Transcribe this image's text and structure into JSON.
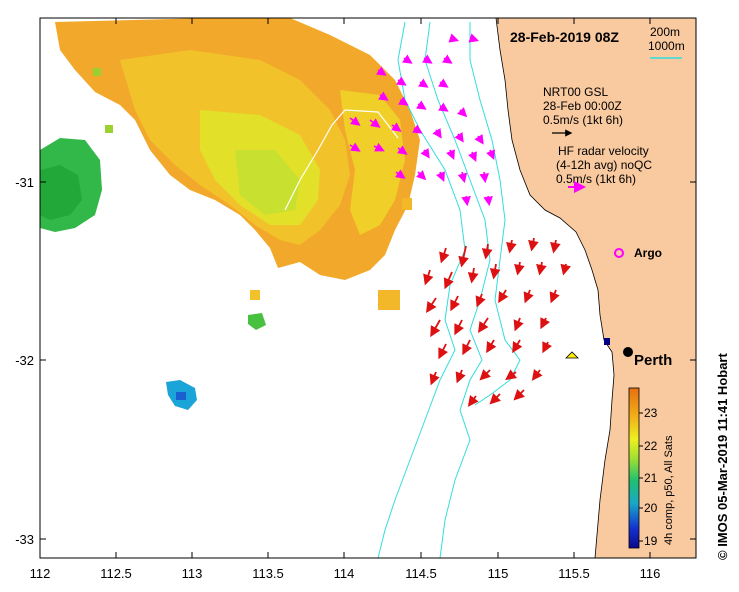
{
  "title": "28-Feb-2019 08Z",
  "contour_legend": {
    "line1": "200m",
    "line2": "1000m",
    "line_color": "#33cccc"
  },
  "nrt_legend": {
    "line1": "NRT00 GSL",
    "line2": "28-Feb 00:00Z",
    "line3": "0.5m/s (1kt 6h)",
    "arrow_color": "#000000"
  },
  "hf_legend": {
    "line1": "HF radar velocity",
    "line2": "(4-12h avg) noQC",
    "line3": "0.5m/s (1kt 6h)",
    "arrow_color": "#ff00ff"
  },
  "argo_label": "Argo",
  "city_label": "Perth",
  "colorbar": {
    "label": "4h comp, p50, All Sats",
    "ticks": [
      "19",
      "20",
      "21",
      "22",
      "23"
    ],
    "range": [
      18.8,
      23.7
    ]
  },
  "credit": "© IMOS 05-Mar-2019 11:41 Hobart",
  "axes": {
    "x_ticks": [
      "112",
      "112.5",
      "113",
      "113.5",
      "114",
      "114.5",
      "115",
      "115.5",
      "116"
    ],
    "y_ticks": [
      "-31",
      "-32",
      "-33"
    ],
    "xlim": [
      112,
      116.3
    ],
    "ylim": [
      -33.1,
      -30.1
    ]
  },
  "colors": {
    "land": "#f9c9a0",
    "contour": "#33dddd",
    "hf_arrow": "#ff00ff",
    "radar_arrow": "#dd1111"
  }
}
